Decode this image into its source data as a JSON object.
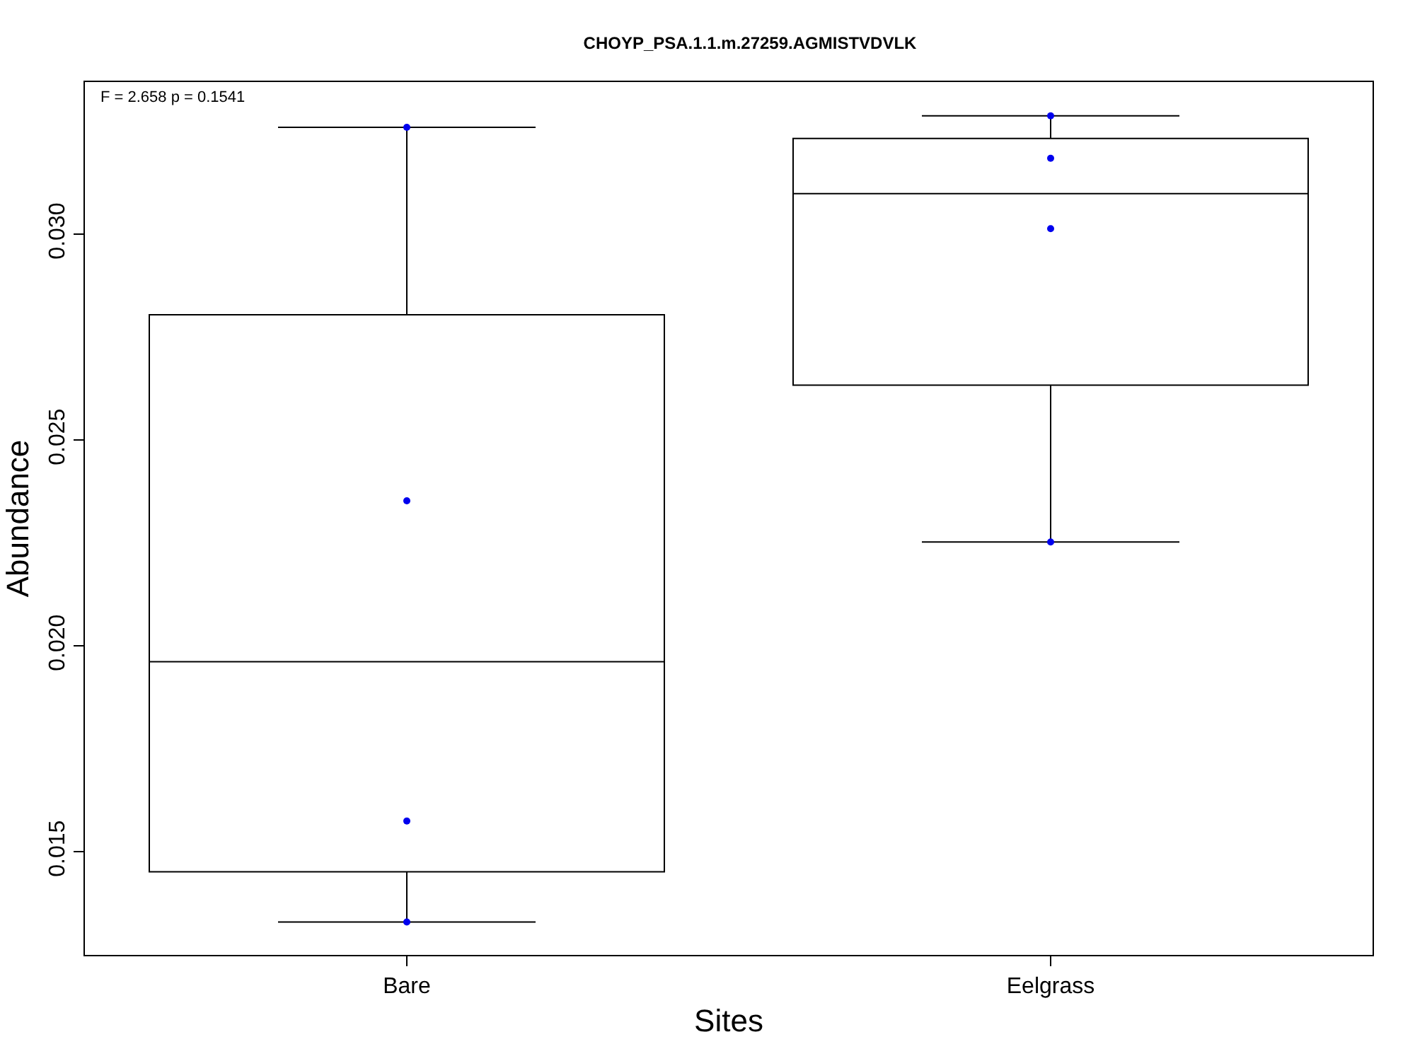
{
  "chart_data": {
    "type": "box",
    "title": "CHOYP_PSA.1.1.m.27259.AGMISTVDVLK",
    "xlabel": "Sites",
    "ylabel": "Abundance",
    "categories": [
      "Bare",
      "Eelgrass"
    ],
    "color": "#000000",
    "boxes": [
      {
        "low": 0.0133,
        "q1": 0.01452,
        "median": 0.01962,
        "q3": 0.02805,
        "high": 0.0326
      },
      {
        "low": 0.02253,
        "q1": 0.02634,
        "median": 0.03099,
        "q3": 0.03233,
        "high": 0.03288
      }
    ],
    "series": [
      {
        "type": "scatter",
        "color": "#0000ee",
        "x": [
          "Bare",
          "Bare",
          "Bare",
          "Bare",
          "Eelgrass",
          "Eelgrass",
          "Eelgrass",
          "Eelgrass"
        ],
        "values": [
          0.0326,
          0.02353,
          0.01575,
          0.0133,
          0.03288,
          0.03185,
          0.03014,
          0.02253
        ]
      }
    ],
    "ylim": [
      0.0125,
      0.0337
    ],
    "yticks": [
      {
        "value": 0.015,
        "label": "0.015"
      },
      {
        "value": 0.02,
        "label": "0.020"
      },
      {
        "value": 0.025,
        "label": "0.025"
      },
      {
        "value": 0.03,
        "label": "0.030"
      }
    ],
    "grid": false,
    "marker": "circle",
    "annotations": [
      "F = 2.658 p = 0.1541"
    ]
  }
}
